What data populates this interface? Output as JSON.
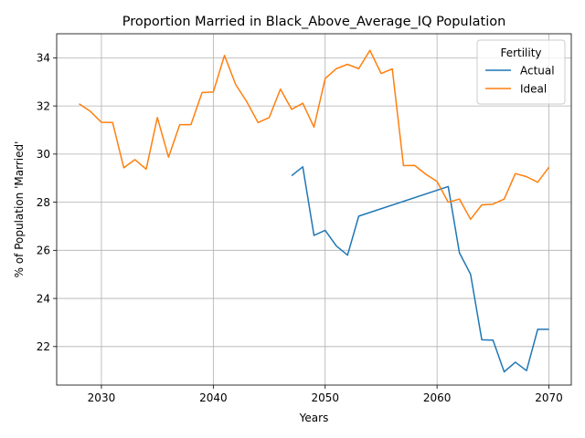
{
  "chart_data": {
    "type": "line",
    "title": "Proportion Married in Black_Above_Average_IQ Population",
    "xlabel": "Years",
    "ylabel": "% of Population 'Married'",
    "xlim": [
      2026,
      2072
    ],
    "ylim": [
      20.4,
      35.0
    ],
    "xticks": [
      2030,
      2040,
      2050,
      2060,
      2070
    ],
    "yticks": [
      22,
      24,
      26,
      28,
      30,
      32,
      34
    ],
    "grid": true,
    "legend": {
      "title": "Fertility",
      "placement": "top-right"
    },
    "series": [
      {
        "name": "Actual",
        "color": "#1f77b4",
        "x": [
          2047,
          2048,
          2049,
          2050,
          2051,
          2052,
          2053,
          2061,
          2062,
          2063,
          2064,
          2065,
          2066,
          2067,
          2068,
          2069,
          2070
        ],
        "y": [
          29.1,
          29.47,
          26.62,
          26.83,
          26.18,
          25.8,
          27.42,
          28.65,
          25.9,
          25.0,
          22.28,
          22.27,
          20.95,
          21.35,
          21.0,
          22.72,
          22.72
        ]
      },
      {
        "name": "Ideal",
        "color": "#ff7f0e",
        "x": [
          2028,
          2029,
          2030,
          2031,
          2032,
          2033,
          2034,
          2035,
          2036,
          2037,
          2038,
          2039,
          2040,
          2041,
          2042,
          2043,
          2044,
          2045,
          2046,
          2047,
          2048,
          2049,
          2050,
          2051,
          2052,
          2053,
          2054,
          2055,
          2056,
          2057,
          2058,
          2059,
          2060,
          2061,
          2062,
          2063,
          2064,
          2065,
          2066,
          2067,
          2068,
          2069,
          2070
        ],
        "y": [
          32.09,
          31.78,
          31.32,
          31.31,
          29.43,
          29.77,
          29.37,
          31.52,
          29.87,
          31.22,
          31.22,
          32.56,
          32.58,
          34.1,
          32.89,
          32.17,
          31.31,
          31.52,
          32.7,
          31.86,
          32.11,
          31.12,
          33.14,
          33.55,
          33.73,
          33.55,
          34.31,
          33.35,
          33.54,
          29.52,
          29.53,
          29.16,
          28.86,
          28.0,
          28.13,
          27.29,
          27.89,
          27.92,
          28.13,
          29.19,
          29.06,
          28.83,
          29.45
        ]
      }
    ]
  }
}
